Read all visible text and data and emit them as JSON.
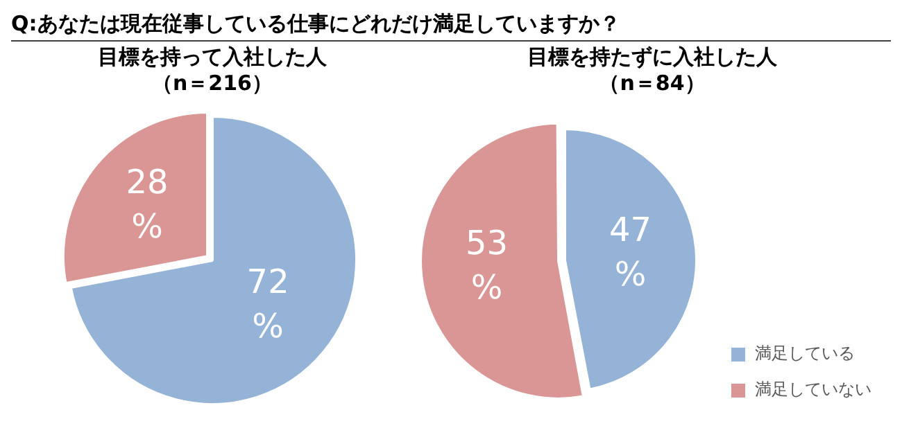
{
  "chart_data": [
    {
      "type": "pie",
      "annotations": [
        "Q:あなたは現在従事している仕事にどれだけ満足していますか？"
      ],
      "title": "目標を持って入社した人",
      "subtitle": "（n＝216）",
      "categories": [
        null,
        null
      ],
      "values": [
        72,
        28
      ],
      "colors": [
        "#95b3d7",
        "#d99694"
      ],
      "value_labels": [
        "72%",
        "28%"
      ],
      "legend": false
    },
    {
      "type": "pie",
      "title": "目標を持たずに入社した人",
      "subtitle": "（n＝84）",
      "categories": [
        "満足している",
        "満足していない"
      ],
      "values": [
        47,
        53
      ],
      "colors": [
        "#95b3d7",
        "#d99694"
      ],
      "value_labels": [
        "47%",
        "53%"
      ],
      "legend": "bottom right"
    }
  ]
}
